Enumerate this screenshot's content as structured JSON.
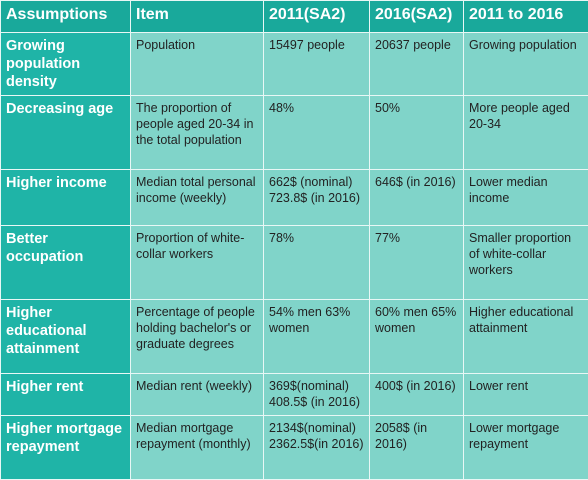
{
  "table": {
    "headers": [
      "Assumptions",
      "Item",
      "2011(SA2)",
      "2016(SA2)",
      "2011 to 2016"
    ],
    "rows": [
      [
        "Growing population density",
        "Population",
        "15497 people",
        "20637 people",
        "Growing population"
      ],
      [
        "Decreasing age",
        "The proportion of people aged 20-34 in the total population",
        "48%",
        "50%",
        "More people aged 20-34"
      ],
      [
        "Higher income",
        "Median total personal income (weekly)",
        "662$ (nominal) 723.8$ (in 2016)",
        "646$ (in 2016)",
        "Lower median income"
      ],
      [
        "Better occupation",
        "Proportion of white-collar workers",
        "78%",
        "77%",
        "Smaller proportion of white-collar workers"
      ],
      [
        "Higher educational attainment",
        "Percentage of people holding bachelor's or graduate degrees",
        "54% men 63% women",
        "60% men 65% women",
        "Higher educational attainment"
      ],
      [
        "Higher rent",
        "Median rent (weekly)",
        "369$(nominal) 408.5$ (in 2016)",
        "400$ (in 2016)",
        "Lower rent"
      ],
      [
        "Higher mortgage repayment",
        "Median mortgage repayment (monthly)",
        "2134$(nominal) 2362.5$(in 2016)",
        "2058$ (in 2016)",
        "Lower mortgage repayment"
      ]
    ]
  }
}
